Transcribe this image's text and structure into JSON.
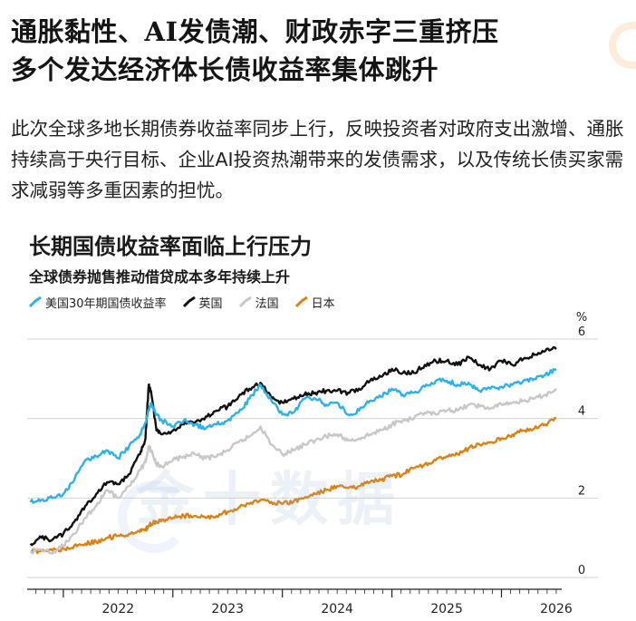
{
  "headline": {
    "line1": "通胀黏性、AI发债潮、财政赤字三重挤压",
    "line2": "多个发达经济体长债收益率集体跳升"
  },
  "intro": "此次全球多地长期债券收益率同步上行，反映投资者对政府支出激增、通胀持续高于央行目标、企业AI投资热潮带来的发债需求，以及传统长债买家需求减弱等多重因素的担忧。",
  "watermark": "金十数据",
  "colors": {
    "us": "#2eb1e8",
    "uk": "#111111",
    "france": "#c8c8c8",
    "japan": "#d98316",
    "gridline": "#d4d4d4",
    "watermark": "#aec3e2"
  },
  "chart_data": {
    "type": "line",
    "title": "长期国债收益率面临上行压力",
    "subtitle": "全球债券抛售推动借贷成本多年持续上升",
    "ylabel": "%",
    "ylim": [
      0,
      6
    ],
    "yticks": [
      0,
      2,
      4,
      6
    ],
    "xlim": [
      2021.67,
      2026.55
    ],
    "xticks": [
      "2022",
      "2023",
      "2024",
      "2025",
      "2026"
    ],
    "grid": true,
    "legend_position": "top-left",
    "x": [
      2021.7,
      2021.8,
      2021.9,
      2022.0,
      2022.1,
      2022.2,
      2022.3,
      2022.4,
      2022.5,
      2022.6,
      2022.7,
      2022.75,
      2022.78,
      2022.8,
      2022.85,
      2022.9,
      2023.0,
      2023.1,
      2023.2,
      2023.3,
      2023.4,
      2023.5,
      2023.6,
      2023.7,
      2023.8,
      2023.9,
      2024.0,
      2024.1,
      2024.2,
      2024.3,
      2024.4,
      2024.5,
      2024.6,
      2024.7,
      2024.8,
      2024.9,
      2025.0,
      2025.1,
      2025.2,
      2025.3,
      2025.4,
      2025.5,
      2025.6,
      2025.7,
      2025.8,
      2025.9,
      2026.0,
      2026.1,
      2026.2,
      2026.3,
      2026.4,
      2026.5
    ],
    "series": [
      {
        "name": "美国30年期国债收益率",
        "color_key": "us",
        "values": [
          1.9,
          1.95,
          2.0,
          2.1,
          2.45,
          2.95,
          3.05,
          3.2,
          3.0,
          3.3,
          3.6,
          3.9,
          4.2,
          4.35,
          4.1,
          3.95,
          3.8,
          3.95,
          3.85,
          3.75,
          3.85,
          3.95,
          4.15,
          4.5,
          4.85,
          4.45,
          4.1,
          4.15,
          4.5,
          4.5,
          4.35,
          4.4,
          4.1,
          4.2,
          4.45,
          4.55,
          4.75,
          4.6,
          4.65,
          4.8,
          4.95,
          4.95,
          4.85,
          4.9,
          4.7,
          4.75,
          4.8,
          4.85,
          4.95,
          5.0,
          5.1,
          5.25
        ]
      },
      {
        "name": "英国",
        "color_key": "uk",
        "values": [
          0.85,
          1.0,
          0.95,
          1.1,
          1.4,
          1.8,
          2.1,
          2.4,
          2.35,
          2.6,
          3.1,
          3.5,
          4.85,
          4.7,
          3.7,
          3.6,
          3.7,
          3.85,
          3.9,
          4.05,
          4.2,
          4.3,
          4.55,
          4.75,
          4.9,
          4.5,
          4.4,
          4.5,
          4.6,
          4.65,
          4.7,
          4.7,
          4.65,
          4.75,
          4.95,
          5.05,
          5.25,
          5.15,
          5.15,
          5.35,
          5.45,
          5.45,
          5.35,
          5.55,
          5.35,
          5.25,
          5.45,
          5.35,
          5.5,
          5.6,
          5.7,
          5.75
        ]
      },
      {
        "name": "法国",
        "color_key": "france",
        "values": [
          0.65,
          0.7,
          0.6,
          0.8,
          1.1,
          1.5,
          1.8,
          2.2,
          2.0,
          2.3,
          2.7,
          2.9,
          3.3,
          3.2,
          2.85,
          2.8,
          2.95,
          3.05,
          3.1,
          3.0,
          3.05,
          3.2,
          3.4,
          3.55,
          3.8,
          3.35,
          3.1,
          3.2,
          3.35,
          3.45,
          3.55,
          3.6,
          3.45,
          3.5,
          3.6,
          3.7,
          3.85,
          3.95,
          4.0,
          4.15,
          4.1,
          4.2,
          4.2,
          4.35,
          4.3,
          4.25,
          4.35,
          4.4,
          4.45,
          4.5,
          4.6,
          4.75
        ]
      },
      {
        "name": "日本",
        "color_key": "japan",
        "values": [
          0.65,
          0.68,
          0.68,
          0.72,
          0.8,
          0.85,
          0.9,
          1.0,
          1.05,
          1.1,
          1.15,
          1.2,
          1.3,
          1.35,
          1.4,
          1.45,
          1.5,
          1.55,
          1.55,
          1.5,
          1.55,
          1.65,
          1.75,
          1.85,
          1.95,
          1.9,
          1.85,
          1.9,
          2.0,
          2.1,
          2.2,
          2.3,
          2.25,
          2.3,
          2.4,
          2.45,
          2.55,
          2.6,
          2.75,
          2.85,
          2.95,
          3.05,
          3.1,
          3.25,
          3.35,
          3.4,
          3.5,
          3.6,
          3.7,
          3.75,
          3.85,
          4.0
        ]
      }
    ]
  }
}
